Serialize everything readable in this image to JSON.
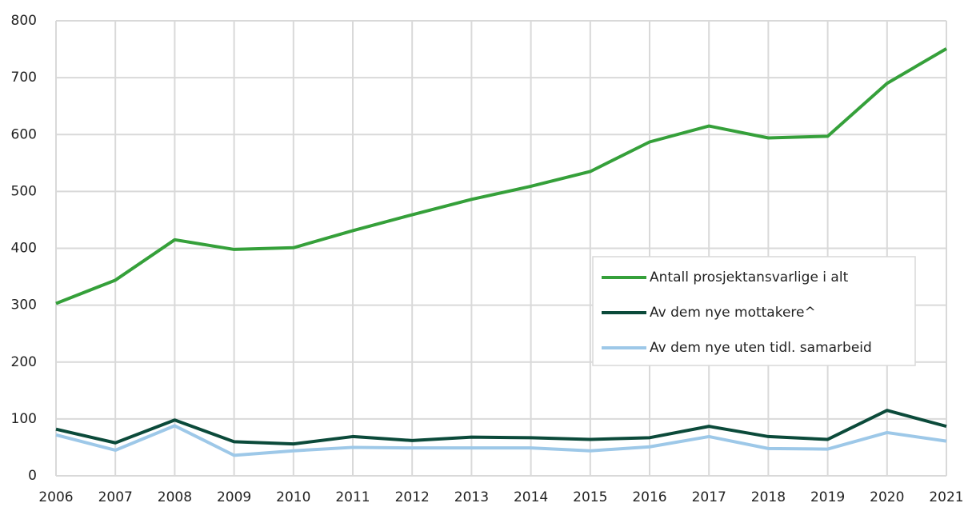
{
  "chart_data": {
    "type": "line",
    "x": [
      2006,
      2007,
      2008,
      2009,
      2010,
      2011,
      2012,
      2013,
      2014,
      2015,
      2016,
      2017,
      2018,
      2019,
      2020,
      2021
    ],
    "xlim": [
      2006,
      2021
    ],
    "xticks": [
      2006,
      2007,
      2008,
      2009,
      2010,
      2011,
      2012,
      2013,
      2014,
      2015,
      2016,
      2017,
      2018,
      2019,
      2020,
      2021
    ],
    "ylim": [
      0,
      800
    ],
    "yticks": [
      0,
      100,
      200,
      300,
      400,
      500,
      600,
      700,
      800
    ],
    "grid": true,
    "legend": "right",
    "series": [
      {
        "name": "Antall prosjektansvarlige i alt",
        "color": "#35a03a",
        "values": [
          303,
          344,
          415,
          398,
          401,
          431,
          459,
          486,
          509,
          535,
          587,
          615,
          594,
          597,
          690,
          751
        ]
      },
      {
        "name": "Av dem nye mottakere^",
        "color": "#0b4a3a",
        "values": [
          82,
          58,
          98,
          60,
          56,
          69,
          62,
          68,
          67,
          64,
          67,
          87,
          69,
          64,
          115,
          87
        ]
      },
      {
        "name": "Av dem nye uten tidl. samarbeid",
        "color": "#9dc8e8",
        "values": [
          72,
          45,
          88,
          36,
          44,
          50,
          49,
          49,
          49,
          44,
          51,
          69,
          48,
          47,
          76,
          61
        ]
      }
    ]
  }
}
